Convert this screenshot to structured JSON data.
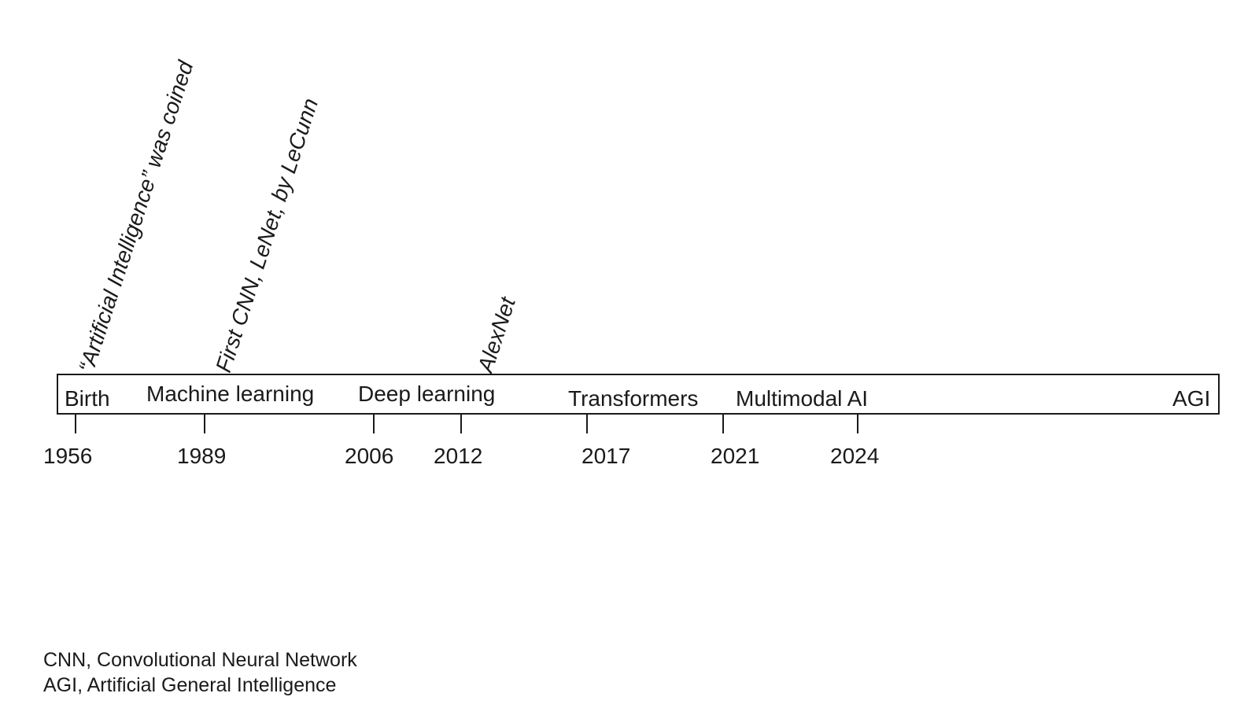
{
  "annotations": [
    {
      "year": "1956",
      "text": "“Artificial Intelligence” was coined"
    },
    {
      "year": "1989",
      "text": "First CNN, LeNet, by LeCunn"
    },
    {
      "year": "2012",
      "text": "AlexNet"
    }
  ],
  "eras": [
    {
      "label": "Birth"
    },
    {
      "label": "Machine learning"
    },
    {
      "label": "Deep learning"
    },
    {
      "label": "Transformers"
    },
    {
      "label": "Multimodal AI"
    },
    {
      "label": "AGI"
    }
  ],
  "years": [
    "1956",
    "1989",
    "2006",
    "2012",
    "2017",
    "2021",
    "2024"
  ],
  "footnotes": [
    "CNN, Convolutional Neural Network",
    "AGI, Artificial General Intelligence"
  ]
}
